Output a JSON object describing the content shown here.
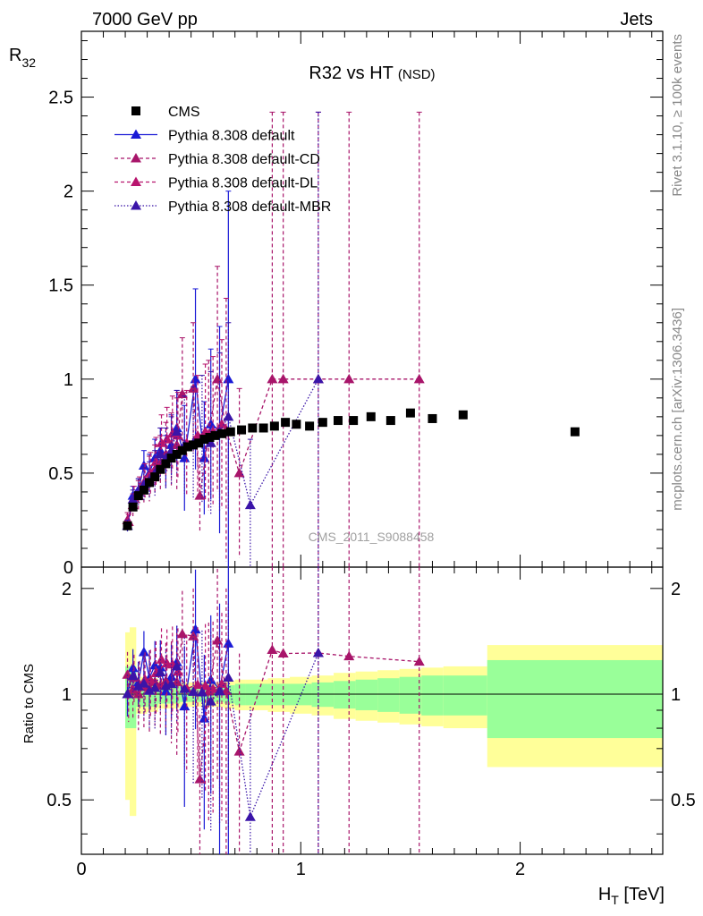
{
  "header": {
    "left": "7000 GeV pp",
    "right": "Jets"
  },
  "side_text": {
    "rivet": "Rivet 3.1.10, ≥ 100k events",
    "mcplots": "mcplots.cern.ch [arXiv:1306.3436]"
  },
  "chart_data": {
    "type": "scatter",
    "title": "R32 vs HT",
    "title_suffix": "(NSD)",
    "watermark": "CMS_2011_S9088458",
    "ylabel_main": "R",
    "ylabel_main_sub": "32",
    "ylabel_ratio": "Ratio to CMS",
    "xlabel": "H",
    "xlabel_sub": "T",
    "xlabel_unit": " [TeV]",
    "xlim": [
      0,
      2.65
    ],
    "ylim_main": [
      0,
      2.85
    ],
    "ylim_ratio": [
      0.35,
      2.3
    ],
    "ratio_log_scale": true,
    "x_ticks": [
      "0",
      "1",
      "2"
    ],
    "y_ticks_main": [
      "0",
      "0.5",
      "1",
      "1.5",
      "2",
      "2.5"
    ],
    "y_ticks_ratio": [
      "0.5",
      "1",
      "2"
    ],
    "legend_position": "top-left",
    "legend": [
      {
        "label": "CMS",
        "color": "#000000",
        "dash": "",
        "marker": "square"
      },
      {
        "label": "Pythia 8.308 default",
        "color": "#1a1ad6",
        "dash": "",
        "marker": "triangle"
      },
      {
        "label": "Pythia 8.308 default-CD",
        "color": "#a8156a",
        "dash": "4,3",
        "marker": "triangle"
      },
      {
        "label": "Pythia 8.308 default-DL",
        "color": "#b8146e",
        "dash": "4,3",
        "marker": "triangle"
      },
      {
        "label": "Pythia 8.308 default-MBR",
        "color": "#3a14a8",
        "dash": "1.5,2",
        "marker": "triangle"
      }
    ],
    "cms": {
      "x": [
        0.21,
        0.235,
        0.26,
        0.285,
        0.31,
        0.335,
        0.36,
        0.385,
        0.41,
        0.435,
        0.46,
        0.485,
        0.51,
        0.535,
        0.56,
        0.585,
        0.61,
        0.64,
        0.68,
        0.73,
        0.78,
        0.83,
        0.88,
        0.93,
        0.98,
        1.04,
        1.1,
        1.17,
        1.24,
        1.32,
        1.41,
        1.5,
        1.6,
        1.74,
        2.25
      ],
      "y": [
        0.22,
        0.32,
        0.38,
        0.41,
        0.45,
        0.48,
        0.52,
        0.55,
        0.58,
        0.6,
        0.62,
        0.64,
        0.65,
        0.66,
        0.68,
        0.69,
        0.7,
        0.71,
        0.72,
        0.73,
        0.74,
        0.74,
        0.75,
        0.77,
        0.76,
        0.75,
        0.77,
        0.78,
        0.78,
        0.8,
        0.78,
        0.82,
        0.79,
        0.81,
        0.72
      ],
      "band_x": [
        0.2,
        0.22,
        0.25,
        0.3,
        0.35,
        0.4,
        0.45,
        0.5,
        0.55,
        0.6,
        0.65,
        0.7,
        0.75,
        0.85,
        0.95,
        1.05,
        1.15,
        1.25,
        1.35,
        1.45,
        1.55,
        1.65,
        1.85,
        2.65
      ],
      "band_green": [
        0.2,
        0.2,
        0.08,
        0.08,
        0.06,
        0.06,
        0.05,
        0.05,
        0.05,
        0.05,
        0.06,
        0.07,
        0.07,
        0.07,
        0.07,
        0.08,
        0.09,
        0.1,
        0.11,
        0.12,
        0.13,
        0.13,
        0.25
      ],
      "band_yellow": [
        0.5,
        0.55,
        0.12,
        0.11,
        0.09,
        0.09,
        0.08,
        0.08,
        0.08,
        0.08,
        0.09,
        0.1,
        0.1,
        0.11,
        0.12,
        0.13,
        0.15,
        0.16,
        0.17,
        0.18,
        0.19,
        0.2,
        0.38
      ]
    },
    "series": [
      {
        "name": "Pythia 8.308 default",
        "color": "#1a1ad6",
        "dash": "",
        "x": [
          0.21,
          0.235,
          0.26,
          0.285,
          0.31,
          0.335,
          0.36,
          0.385,
          0.41,
          0.435,
          0.47,
          0.52,
          0.56,
          0.59,
          0.63,
          0.67
        ],
        "y": [
          0.22,
          0.38,
          0.41,
          0.54,
          0.5,
          0.58,
          0.62,
          0.56,
          0.65,
          0.74,
          0.58,
          1.0,
          0.58,
          0.76,
          0.73,
          1.0
        ],
        "err": [
          0.03,
          0.05,
          0.06,
          0.08,
          0.1,
          0.1,
          0.12,
          0.14,
          0.16,
          0.2,
          0.28,
          0.48,
          0.3,
          0.4,
          0.55,
          1.0
        ]
      },
      {
        "name": "Pythia 8.308 default-CD",
        "color": "#a8156a",
        "dash": "4,3",
        "x": [
          0.21,
          0.235,
          0.26,
          0.285,
          0.31,
          0.335,
          0.36,
          0.385,
          0.41,
          0.435,
          0.46,
          0.51,
          0.54,
          0.58,
          0.62,
          0.66,
          0.72,
          0.87,
          0.92,
          1.08,
          1.22,
          1.54
        ],
        "y": [
          0.25,
          0.33,
          0.38,
          0.43,
          0.47,
          0.52,
          0.55,
          0.6,
          0.62,
          0.65,
          0.92,
          0.95,
          0.38,
          0.7,
          1.0,
          0.73,
          0.5,
          1.0,
          1.0,
          1.0,
          1.0,
          1.0
        ],
        "err": [
          0.04,
          0.06,
          0.08,
          0.1,
          0.12,
          0.13,
          0.15,
          0.17,
          0.2,
          0.25,
          0.3,
          0.35,
          0.2,
          0.4,
          0.6,
          0.7,
          0.45,
          1.42,
          1.42,
          1.42,
          1.42,
          1.42
        ]
      },
      {
        "name": "Pythia 8.308 default-DL",
        "color": "#b8146e",
        "dash": "4,3",
        "x": [
          0.215,
          0.24,
          0.265,
          0.29,
          0.315,
          0.34,
          0.365,
          0.39,
          0.415,
          0.44,
          0.48,
          0.53,
          0.565,
          0.6,
          0.64
        ],
        "y": [
          0.24,
          0.37,
          0.41,
          0.46,
          0.5,
          0.56,
          0.66,
          0.68,
          0.71,
          0.7,
          0.66,
          0.7,
          0.72,
          0.72,
          0.76
        ],
        "err": [
          0.04,
          0.06,
          0.07,
          0.09,
          0.11,
          0.13,
          0.15,
          0.17,
          0.2,
          0.23,
          0.28,
          0.32,
          0.36,
          0.4,
          0.45
        ]
      },
      {
        "name": "Pythia 8.308 default-MBR",
        "color": "#3a14a8",
        "dash": "1.5,2",
        "x": [
          0.21,
          0.235,
          0.26,
          0.285,
          0.31,
          0.335,
          0.36,
          0.385,
          0.41,
          0.435,
          0.47,
          0.51,
          0.55,
          0.59,
          0.63,
          0.67,
          0.77,
          1.08
        ],
        "y": [
          0.22,
          0.36,
          0.4,
          0.44,
          0.46,
          0.5,
          0.6,
          0.58,
          0.62,
          0.72,
          0.65,
          0.66,
          0.68,
          0.66,
          0.72,
          0.8,
          0.33,
          1.0
        ],
        "err": [
          0.03,
          0.05,
          0.07,
          0.09,
          0.1,
          0.12,
          0.14,
          0.16,
          0.18,
          0.22,
          0.26,
          0.3,
          0.34,
          0.38,
          0.42,
          0.5,
          0.35,
          1.42
        ]
      }
    ]
  }
}
